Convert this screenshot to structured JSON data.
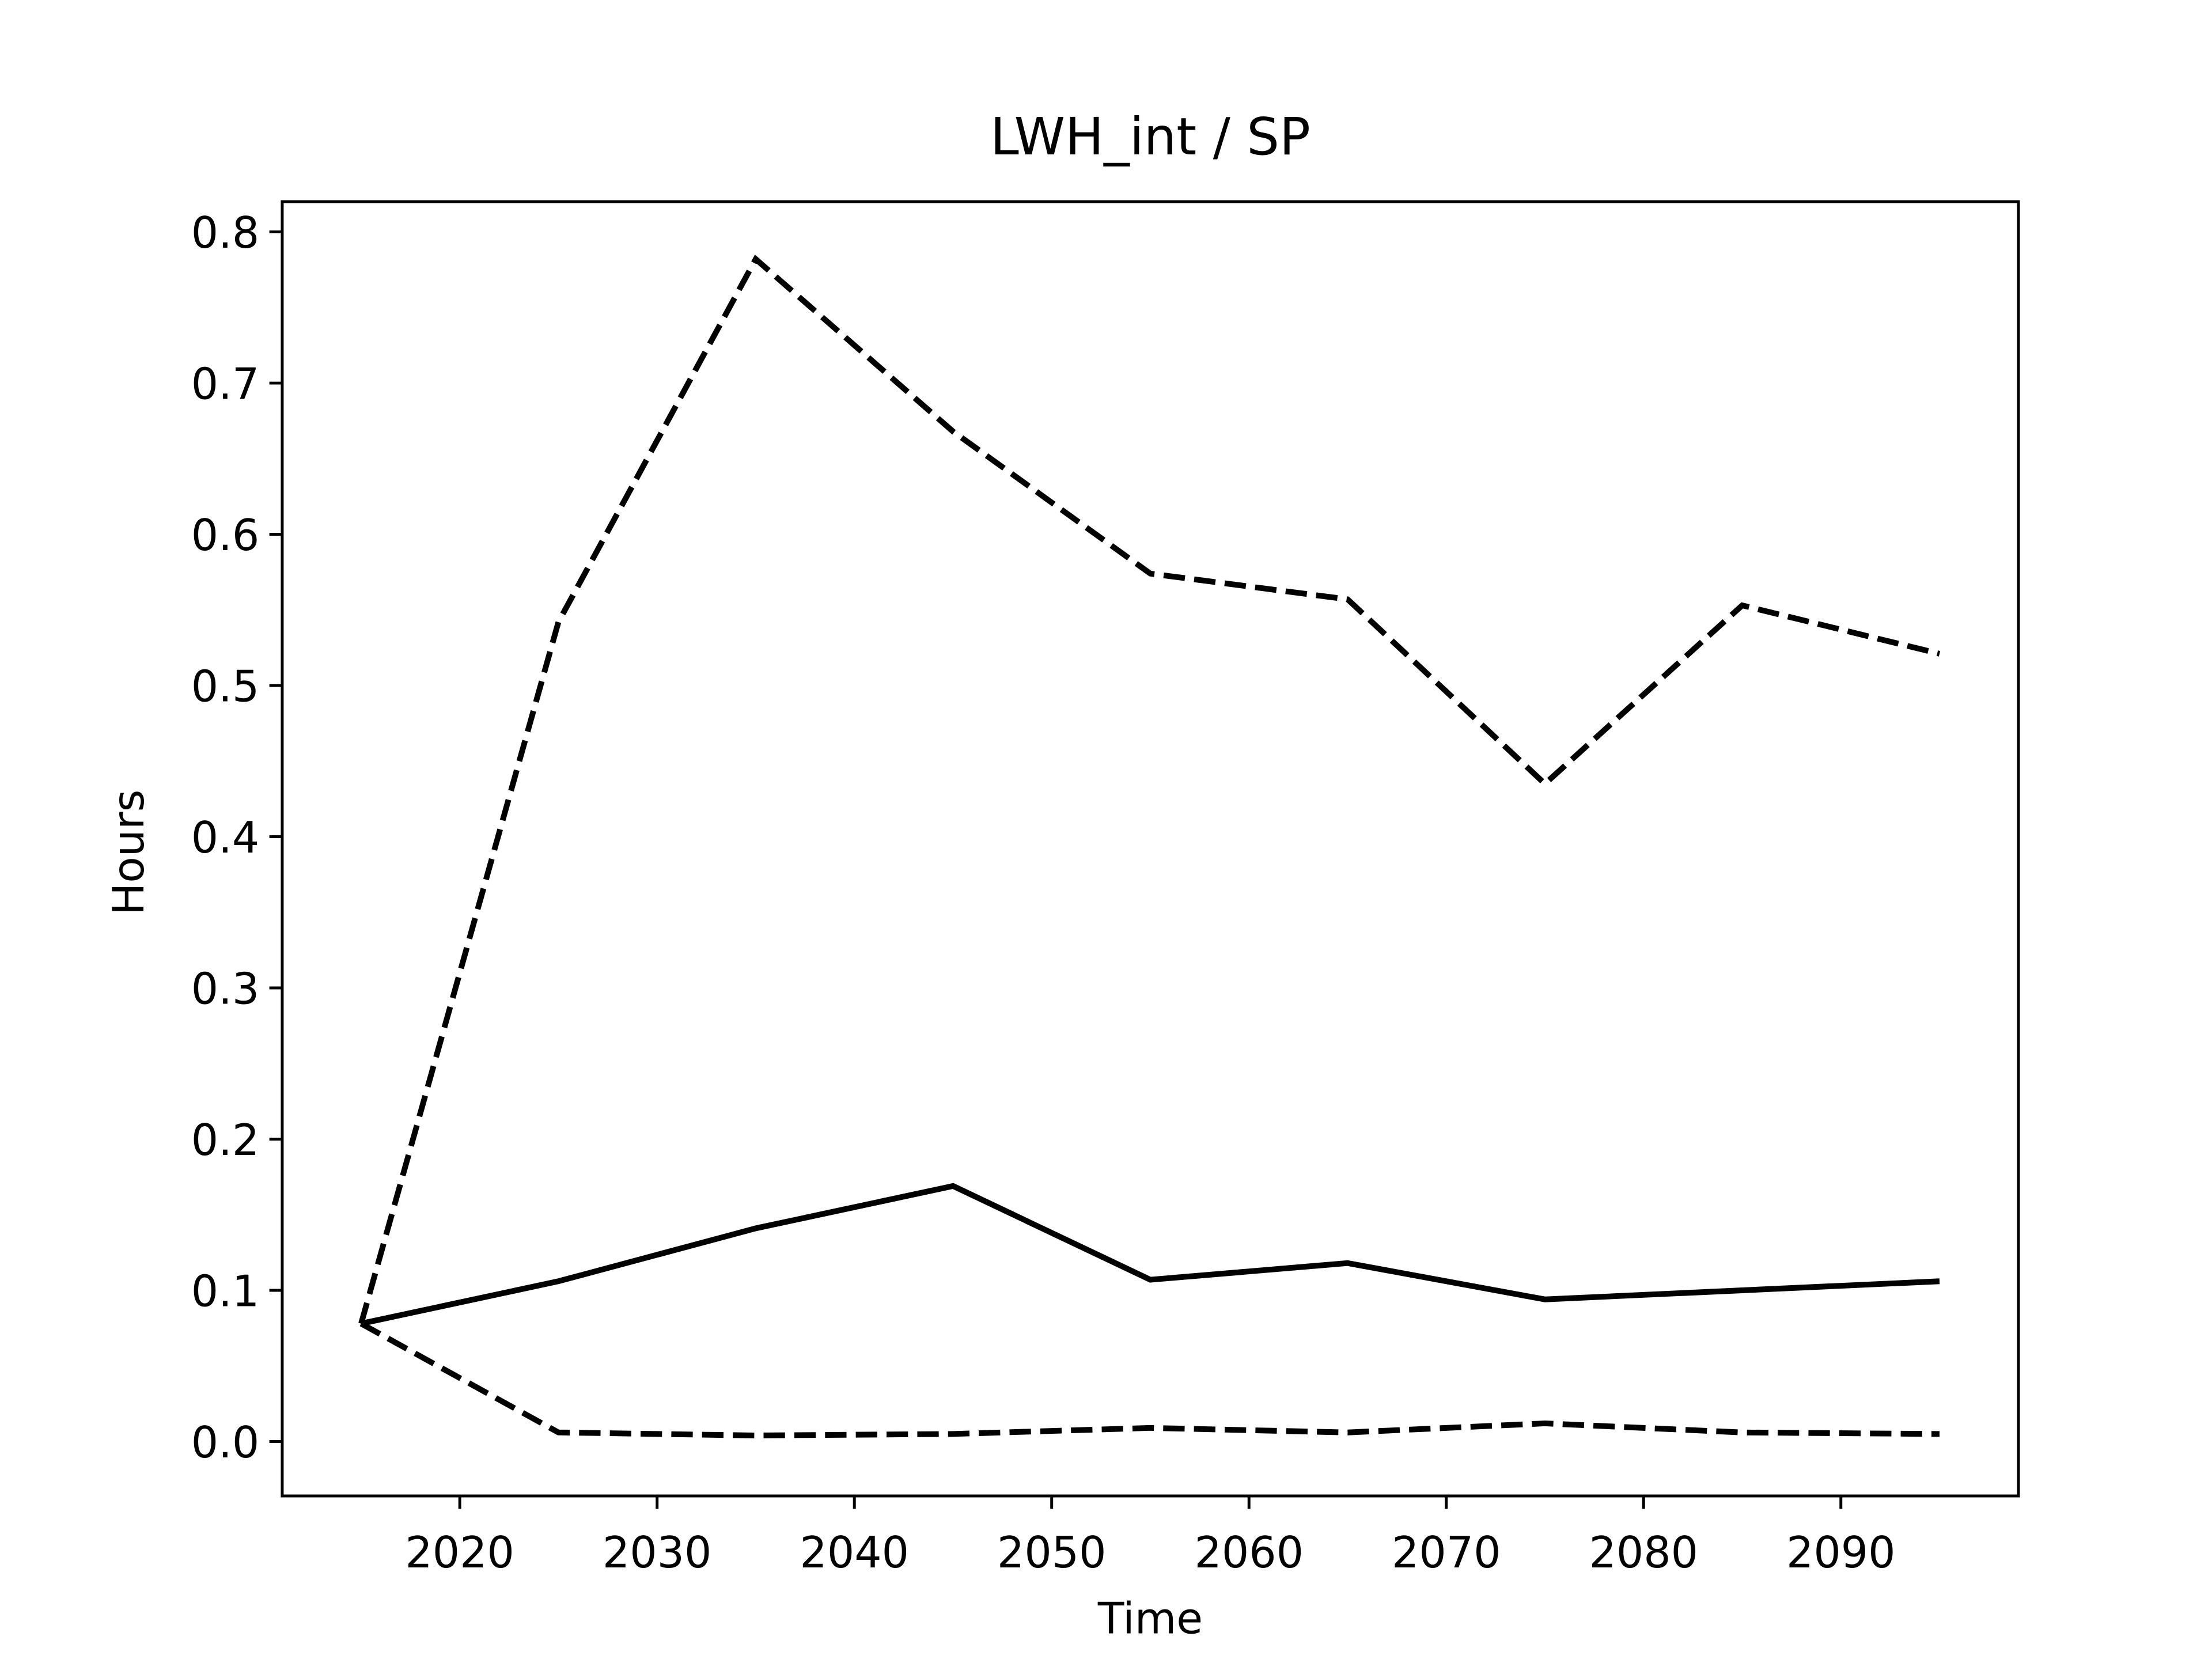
{
  "chart_data": {
    "type": "line",
    "title": "LWH_int / SP",
    "x_label": "Time",
    "y_label": "Hours",
    "x": [
      2015,
      2025,
      2035,
      2045,
      2055,
      2065,
      2075,
      2085,
      2095
    ],
    "series": [
      {
        "color": "#000000",
        "linestyle": "solid",
        "values": [
          0.078,
          0.106,
          0.141,
          0.169,
          0.107,
          0.118,
          0.094,
          0.1,
          0.106
        ]
      },
      {
        "color": "#000000",
        "linestyle": "dashed",
        "values": [
          0.078,
          0.542,
          0.782,
          0.668,
          0.574,
          0.557,
          0.435,
          0.553,
          0.521
        ]
      },
      {
        "color": "#000000",
        "linestyle": "dashed",
        "values": [
          0.078,
          0.006,
          0.004,
          0.005,
          0.009,
          0.006,
          0.012,
          0.006,
          0.005
        ]
      }
    ],
    "xlim": [
      2011,
      2099
    ],
    "xticks": [
      2020,
      2030,
      2040,
      2050,
      2060,
      2070,
      2080,
      2090
    ],
    "ylim": [
      -0.036,
      0.82
    ],
    "yticks": [
      {
        "value": 0,
        "label": "0.0"
      },
      0.1,
      0.2,
      0.3,
      0.4,
      0.5,
      0.6,
      0.7,
      0.8
    ],
    "grid": false
  }
}
